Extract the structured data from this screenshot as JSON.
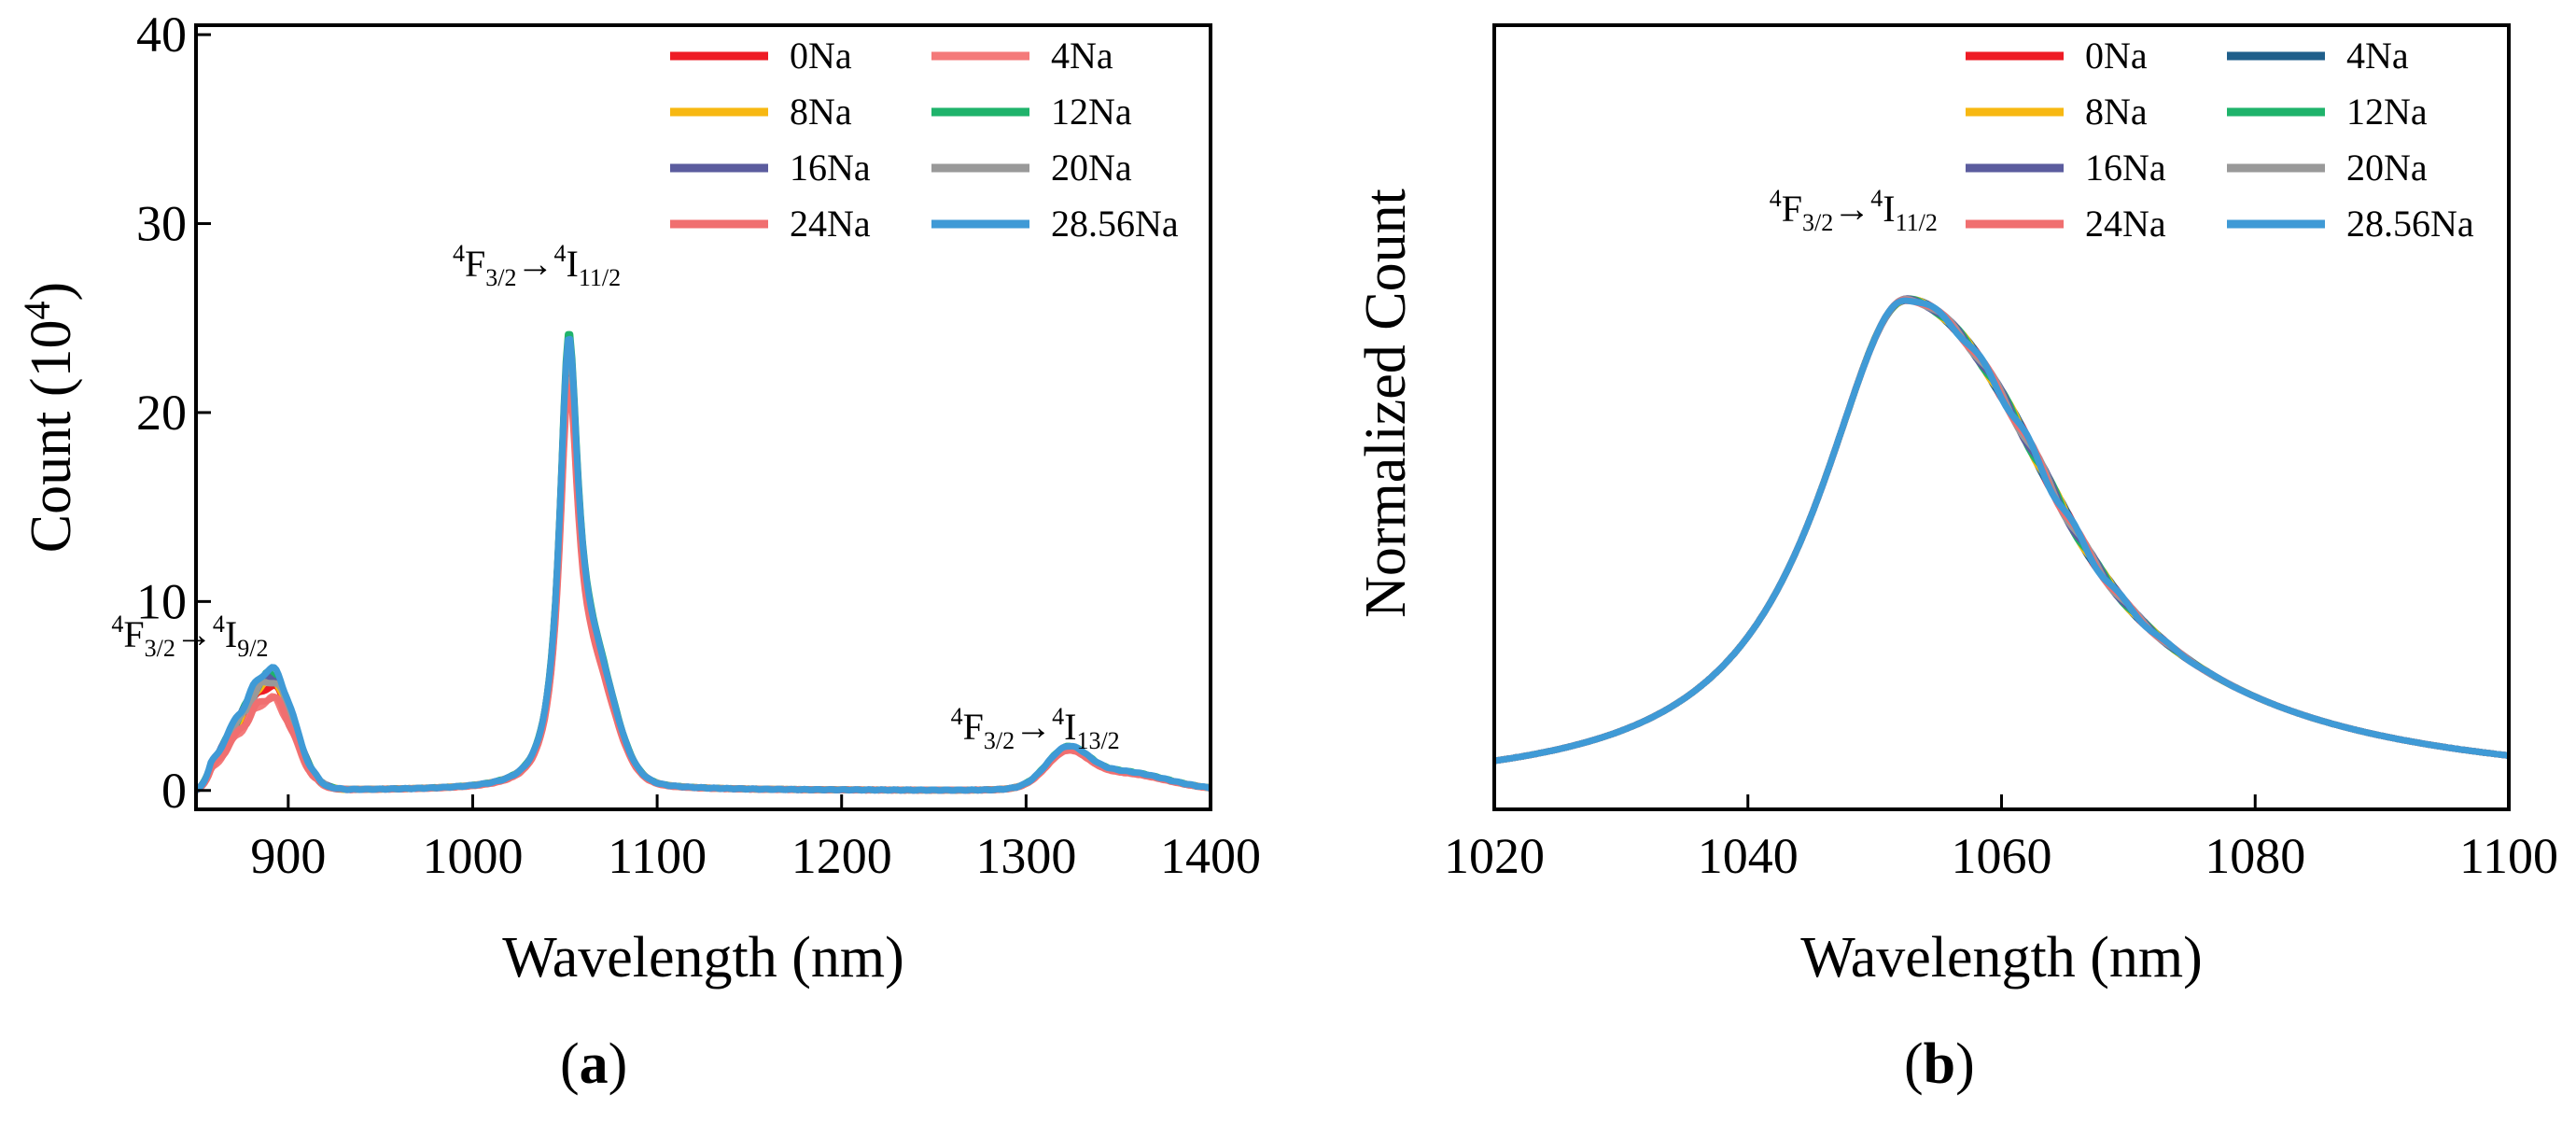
{
  "chart_data": [
    {
      "panel": "a",
      "caption_letter": "a",
      "type": "line",
      "xlabel": "Wavelength (nm)",
      "ylabel_main": "Count (10",
      "ylabel_sup": "4",
      "ylabel_close": ")",
      "xlim": [
        850,
        1400
      ],
      "ylim": [
        -1,
        40.5
      ],
      "xticks": [
        900,
        1000,
        1100,
        1200,
        1300,
        1400
      ],
      "yticks": [
        0,
        10,
        20,
        30,
        40
      ],
      "legend": [
        "0Na",
        "4Na",
        "8Na",
        "12Na",
        "16Na",
        "20Na",
        "24Na",
        "28.56Na"
      ],
      "annotations": [
        {
          "pre": "4",
          "base": "F",
          "sub": "3/2",
          "arrow": "→",
          "pre2": "4",
          "base2": "I",
          "sub2": "9/2",
          "x": 875,
          "y": 7.6
        },
        {
          "pre": "4",
          "base": "F",
          "sub": "3/2",
          "arrow": "→",
          "pre2": "4",
          "base2": "I",
          "sub2": "11/2",
          "x": 1060,
          "y": 27.2
        },
        {
          "pre": "4",
          "base": "F",
          "sub": "3/2",
          "arrow": "→",
          "pre2": "4",
          "base2": "I",
          "sub2": "13/2",
          "x": 1330,
          "y": 2.7
        }
      ],
      "series": [
        {
          "name": "0Na",
          "color": "#ee1c25",
          "peaks": [
            5.6,
            24.6,
            2.0
          ]
        },
        {
          "name": "4Na",
          "color": "#f47a7a",
          "peaks": [
            4.9,
            23.2,
            1.9
          ]
        },
        {
          "name": "8Na",
          "color": "#f7b812",
          "peaks": [
            6.0,
            25.3,
            2.0
          ]
        },
        {
          "name": "12Na",
          "color": "#1fb36b",
          "peaks": [
            6.2,
            25.8,
            2.1
          ]
        },
        {
          "name": "16Na",
          "color": "#5b5c9e",
          "peaks": [
            6.1,
            25.4,
            2.0
          ]
        },
        {
          "name": "20Na",
          "color": "#999999",
          "peaks": [
            5.9,
            25.1,
            2.0
          ]
        },
        {
          "name": "24Na",
          "color": "#f06f70",
          "peaks": [
            5.0,
            22.8,
            1.9
          ]
        },
        {
          "name": "28.56Na",
          "color": "#3f9ad6",
          "peaks": [
            6.5,
            25.5,
            2.1
          ]
        }
      ]
    },
    {
      "panel": "b",
      "caption_letter": "b",
      "type": "line",
      "xlabel": "Wavelength (nm)",
      "ylabel": "Normalized Count",
      "xlim": [
        1020,
        1100
      ],
      "ylim": [
        0,
        1.2
      ],
      "xticks": [
        1020,
        1040,
        1060,
        1080,
        1100
      ],
      "yticks": [],
      "legend": [
        "0Na",
        "4Na",
        "8Na",
        "12Na",
        "16Na",
        "20Na",
        "24Na",
        "28.56Na"
      ],
      "annotations": [
        {
          "pre": "4",
          "base": "F",
          "sub": "3/2",
          "arrow": "→",
          "pre2": "4",
          "base2": "I",
          "sub2": "11/2",
          "x": 1052,
          "y": 0.9
        }
      ],
      "peak_x": 1052.5,
      "peak_y": 0.78,
      "baseline": 0.026,
      "end_value": 0.032,
      "series": [
        {
          "name": "0Na",
          "color": "#ee1c25"
        },
        {
          "name": "4Na",
          "color": "#1f5f8b"
        },
        {
          "name": "8Na",
          "color": "#f7b812"
        },
        {
          "name": "12Na",
          "color": "#1fb36b"
        },
        {
          "name": "16Na",
          "color": "#5b5c9e"
        },
        {
          "name": "20Na",
          "color": "#999999"
        },
        {
          "name": "24Na",
          "color": "#f06f70"
        },
        {
          "name": "28.56Na",
          "color": "#3f9ad6"
        }
      ]
    }
  ]
}
